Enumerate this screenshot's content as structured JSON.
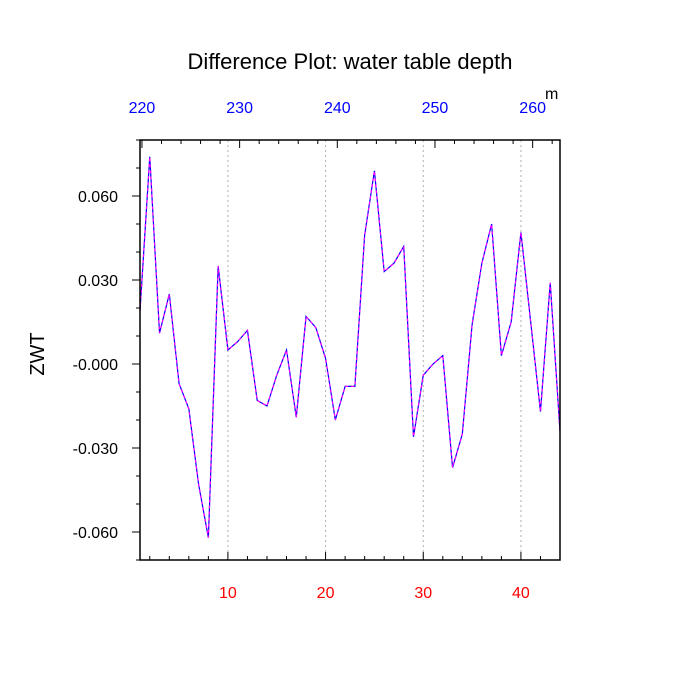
{
  "chart_data": {
    "type": "line",
    "title": "Difference Plot: water table depth",
    "ylabel": "ZWT",
    "top_axis_unit": "m",
    "xlim": [
      1,
      44
    ],
    "ylim": [
      -0.07,
      0.08
    ],
    "grid": "vertical dashed at labeled bottom ticks",
    "bottom_axis": {
      "color": "#ff0000",
      "ticks": [
        10,
        20,
        30,
        40
      ],
      "labels": [
        "10",
        "20",
        "30",
        "40"
      ]
    },
    "top_axis": {
      "color": "#0000ff",
      "positions": [
        1.2,
        11.2,
        21.2,
        31.2,
        41.2
      ],
      "labels": [
        "220",
        "230",
        "240",
        "250",
        "260"
      ]
    },
    "left_axis": {
      "ticks": [
        0.06,
        0.03,
        0,
        -0.03,
        -0.06
      ],
      "labels": [
        "0.060",
        "0.030",
        "-0.000",
        "-0.030",
        "-0.060"
      ]
    },
    "series": [
      {
        "color": "#0000ff",
        "overlay_color": "#ff00ff",
        "x": [
          1,
          2,
          3,
          4,
          5,
          6,
          7,
          8,
          9,
          10,
          11,
          12,
          13,
          14,
          15,
          16,
          17,
          18,
          19,
          20,
          21,
          22,
          23,
          24,
          25,
          26,
          27,
          28,
          29,
          30,
          31,
          32,
          33,
          34,
          35,
          36,
          37,
          38,
          39,
          40,
          41,
          42,
          43,
          44
        ],
        "values": [
          0.019,
          0.074,
          0.011,
          0.025,
          -0.007,
          -0.016,
          -0.043,
          -0.062,
          0.035,
          0.005,
          0.008,
          0.012,
          -0.013,
          -0.015,
          -0.004,
          0.005,
          -0.019,
          0.017,
          0.013,
          0.002,
          -0.02,
          -0.008,
          -0.008,
          0.046,
          0.069,
          0.033,
          0.036,
          0.042,
          -0.026,
          -0.004,
          0.0,
          0.003,
          -0.037,
          -0.025,
          0.014,
          0.036,
          0.05,
          0.003,
          0.015,
          0.047,
          0.015,
          -0.017,
          0.029,
          -0.024
        ]
      }
    ]
  }
}
